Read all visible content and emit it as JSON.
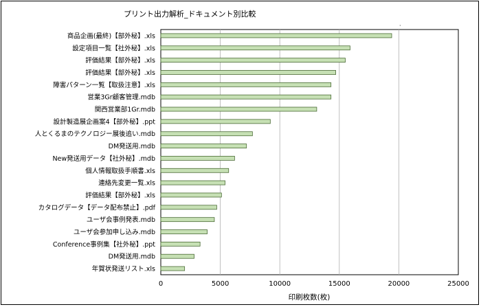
{
  "chart_data": {
    "type": "bar",
    "orientation": "horizontal",
    "title": "プリント出力解析_ドキュメント別比較",
    "xlabel": "印刷枚数(枚)",
    "ylabel": "",
    "xlim": [
      0,
      25000
    ],
    "xticks": [
      0,
      5000,
      10000,
      15000,
      20000,
      25000
    ],
    "grid": true,
    "legend": "none",
    "bar_color": "#c6e0b4",
    "bar_stroke": "#4a6a35",
    "categories": [
      "商品企画(最終)【部外秘】.xls",
      "設定項目一覧【社外秘】.xls",
      "評価結果【部外秘】.xls",
      "評価結果【部外秘】.xls",
      "障害パターン一覧【取扱注意】.xls",
      "営業3Gr顧客管理.mdb",
      "関西営業部1Gr.mdb",
      "設計製造展企画案4【部外秘】.ppt",
      "人とくるまのテクノロジー展後追い.mdb",
      "DM発送用.mdb",
      "New発送用データ【社外秘】.mdb",
      "個人情報取扱手順書.xls",
      "連絡先変更一覧.xls",
      "評価結果【部外秘】.xls",
      "カタログデータ【データ配布禁止】.pdf",
      "ユーザ会事例発表.mdb",
      "ユーザ会参加申し込み.mdb",
      "Conference事例集【社外秘】.ppt",
      "DM発送用.mdb",
      "年賀状発送リスト.xls"
    ],
    "values": [
      19400,
      15900,
      15500,
      14700,
      14300,
      14300,
      13100,
      9200,
      7700,
      7200,
      6200,
      5700,
      5400,
      5100,
      4700,
      4500,
      3900,
      3300,
      2800,
      2000
    ]
  }
}
